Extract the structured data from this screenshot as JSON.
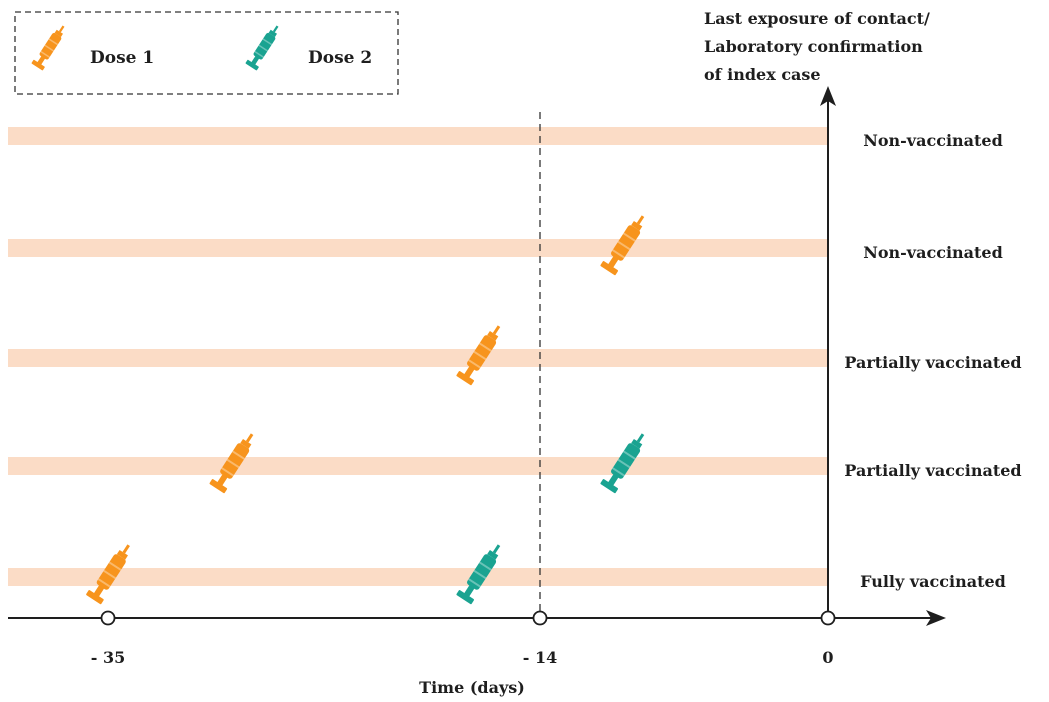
{
  "legend": {
    "items": [
      {
        "label": "Dose 1",
        "color": "#f7941d"
      },
      {
        "label": "Dose 2",
        "color": "#1aa391"
      }
    ]
  },
  "axis": {
    "title": "Time (days)",
    "ticks": [
      -35,
      -14,
      0
    ],
    "tick_labels": [
      "- 35",
      "- 14",
      "0"
    ],
    "reference_label": [
      "Last exposure of contact/",
      "Laboratory confirmation",
      "of index case"
    ]
  },
  "rows": [
    {
      "status": "Non-vaccinated",
      "doses": []
    },
    {
      "status": "Non-vaccinated",
      "doses": [
        {
          "dose": 1,
          "day": -10
        }
      ]
    },
    {
      "status": "Partially vaccinated",
      "doses": [
        {
          "dose": 1,
          "day": -17
        }
      ]
    },
    {
      "status": "Partially vaccinated",
      "doses": [
        {
          "dose": 1,
          "day": -29
        },
        {
          "dose": 2,
          "day": -10
        }
      ]
    },
    {
      "status": "Fully vaccinated",
      "doses": [
        {
          "dose": 1,
          "day": -35
        },
        {
          "dose": 2,
          "day": -17
        }
      ]
    }
  ],
  "colors": {
    "band": "#fbdcc6",
    "axis": "#1e1e1e",
    "dose1": "#f7941d",
    "dose2": "#1aa391"
  }
}
